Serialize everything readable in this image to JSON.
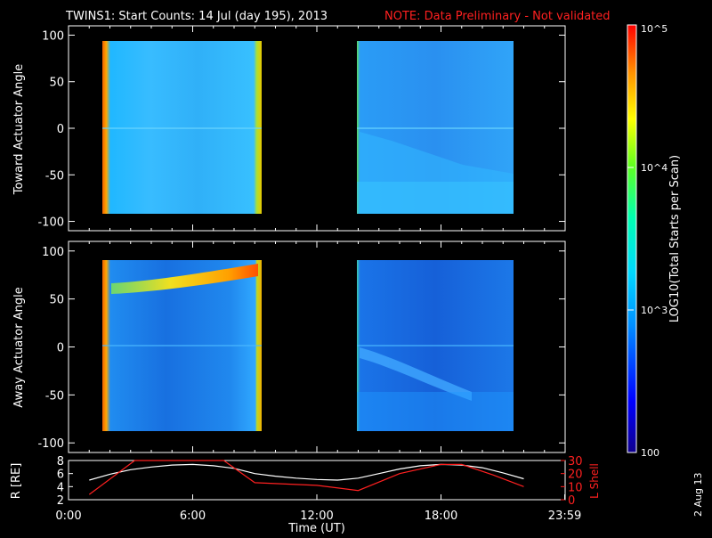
{
  "header": {
    "title": "TWINS1: Start Counts: 14 Jul (day 195), 2013",
    "note": "NOTE: Data Preliminary - Not validated"
  },
  "colors": {
    "background": "#000000",
    "axes": "#ffffff",
    "note": "#ff2020",
    "lshell": "#ff2020",
    "radius": "#ffffff"
  },
  "footer": {
    "date_stamp": "2 Aug 13"
  },
  "colorbar": {
    "label": "LOG10(Total Starts per Scan)",
    "ticks": [
      "10^5",
      "10^4",
      "10^3",
      "100"
    ],
    "tick_values": [
      100000,
      10000,
      1000,
      100
    ],
    "scale": "log",
    "colormap": "rainbow"
  },
  "chart_data": [
    {
      "type": "heatmap",
      "panel": "toward",
      "ylabel": "Toward Actuator Angle",
      "ylim": [
        -110,
        110
      ],
      "yticks": [
        "100",
        "50",
        "0",
        "-50",
        "-100"
      ],
      "xlim_hours": [
        0,
        24
      ],
      "data_intervals_hours": [
        [
          1.0,
          9.1
        ],
        [
          14.0,
          22.0
        ]
      ],
      "scan_angle_range": [
        -90,
        90
      ],
      "log_counts_estimate": {
        "background": 3.0,
        "edge_bursts": 4.8,
        "post_midday_low": 2.6
      }
    },
    {
      "type": "heatmap",
      "panel": "away",
      "ylabel": "Away Actuator Angle",
      "ylim": [
        -110,
        110
      ],
      "yticks": [
        "100",
        "50",
        "0",
        "-50",
        "-100"
      ],
      "xlim_hours": [
        0,
        24
      ],
      "data_intervals_hours": [
        [
          1.0,
          9.1
        ],
        [
          14.0,
          22.0
        ]
      ],
      "scan_angle_range": [
        -90,
        90
      ],
      "log_counts_estimate": {
        "background": 2.8,
        "high_band_70deg": 4.2,
        "edge_bursts": 4.8
      }
    },
    {
      "type": "line",
      "panel": "ephemeris",
      "xlabel": "Time (UT)",
      "xticks": [
        "0:00",
        "6:00",
        "12:00",
        "18:00",
        "23:59"
      ],
      "xtick_hours": [
        0,
        6,
        12,
        18,
        23.98
      ],
      "left_axis": {
        "label": "R [RE]",
        "ylim": [
          2,
          8
        ],
        "ticks": [
          "2",
          "4",
          "6",
          "8"
        ]
      },
      "right_axis": {
        "label": "L Shell",
        "ylim": [
          0,
          30
        ],
        "ticks": [
          "0",
          "10",
          "20",
          "30"
        ]
      },
      "series": [
        {
          "name": "R [RE]",
          "axis": "left",
          "x": [
            1.0,
            2.0,
            3.0,
            4.0,
            5.0,
            6.0,
            7.0,
            8.0,
            9.0,
            10.0,
            11.0,
            12.0,
            13.0,
            14.0,
            15.0,
            16.0,
            17.0,
            18.0,
            19.0,
            20.0,
            21.0,
            22.0
          ],
          "y": [
            5.0,
            5.9,
            6.6,
            7.0,
            7.3,
            7.4,
            7.2,
            6.8,
            6.0,
            5.6,
            5.3,
            5.1,
            5.0,
            5.3,
            6.0,
            6.7,
            7.2,
            7.4,
            7.3,
            6.9,
            6.1,
            5.2
          ]
        },
        {
          "name": "L Shell",
          "axis": "right",
          "x": [
            1.0,
            3.2,
            7.5,
            9.0,
            12.0,
            14.0,
            16.0,
            18.0,
            19.0,
            20.5,
            22.0
          ],
          "y": [
            4,
            30,
            30,
            13,
            11,
            7,
            20,
            27,
            27,
            19,
            10
          ]
        }
      ]
    }
  ]
}
